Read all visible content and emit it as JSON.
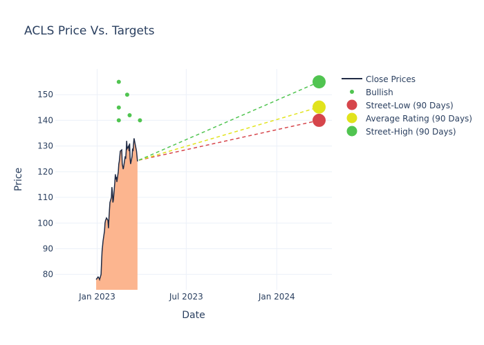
{
  "chart_data": {
    "type": "line",
    "title": "ACLS Price Vs. Targets",
    "xlabel": "Date",
    "ylabel": "Price",
    "x_ticks": [
      {
        "label": "Jan 2023",
        "value": "2023-01-01"
      },
      {
        "label": "Jul 2023",
        "value": "2023-07-01"
      },
      {
        "label": "Jan 2024",
        "value": "2024-01-01"
      }
    ],
    "y_ticks": [
      80,
      90,
      100,
      110,
      120,
      130,
      140,
      150
    ],
    "xlim": [
      "2022-10-08",
      "2024-04-22"
    ],
    "ylim": [
      74,
      160
    ],
    "grid": true,
    "legend_position": "right",
    "close_prices": {
      "name": "Close Prices",
      "color": "#1f2a44",
      "fill_color": "#fcb58f",
      "points": [
        [
          "2022-12-30",
          78
        ],
        [
          "2023-01-03",
          79
        ],
        [
          "2023-01-05",
          78.5
        ],
        [
          "2023-01-06",
          78
        ],
        [
          "2023-01-09",
          80
        ],
        [
          "2023-01-10",
          85
        ],
        [
          "2023-01-11",
          89
        ],
        [
          "2023-01-12",
          91
        ],
        [
          "2023-01-13",
          93
        ],
        [
          "2023-01-16",
          97
        ],
        [
          "2023-01-17",
          100
        ],
        [
          "2023-01-18",
          101
        ],
        [
          "2023-01-20",
          102
        ],
        [
          "2023-01-23",
          101
        ],
        [
          "2023-01-24",
          98
        ],
        [
          "2023-01-25",
          102
        ],
        [
          "2023-01-26",
          105
        ],
        [
          "2023-01-27",
          108
        ],
        [
          "2023-01-30",
          110
        ],
        [
          "2023-01-31",
          114
        ],
        [
          "2023-02-01",
          112
        ],
        [
          "2023-02-02",
          108
        ],
        [
          "2023-02-03",
          109
        ],
        [
          "2023-02-06",
          116
        ],
        [
          "2023-02-07",
          119
        ],
        [
          "2023-02-08",
          117
        ],
        [
          "2023-02-09",
          118
        ],
        [
          "2023-02-10",
          116
        ],
        [
          "2023-02-13",
          120
        ],
        [
          "2023-02-14",
          123
        ],
        [
          "2023-02-15",
          124
        ],
        [
          "2023-02-16",
          126
        ],
        [
          "2023-02-17",
          128
        ],
        [
          "2023-02-20",
          128.5
        ],
        [
          "2023-02-21",
          123
        ],
        [
          "2023-02-22",
          122
        ],
        [
          "2023-02-23",
          121
        ],
        [
          "2023-02-24",
          122
        ],
        [
          "2023-02-27",
          126
        ],
        [
          "2023-02-28",
          125
        ],
        [
          "2023-03-01",
          128
        ],
        [
          "2023-03-02",
          132
        ],
        [
          "2023-03-03",
          129
        ],
        [
          "2023-03-06",
          130
        ],
        [
          "2023-03-07",
          128
        ],
        [
          "2023-03-08",
          131
        ],
        [
          "2023-03-09",
          125
        ],
        [
          "2023-03-10",
          123
        ],
        [
          "2023-03-13",
          126
        ],
        [
          "2023-03-14",
          129
        ],
        [
          "2023-03-15",
          128
        ],
        [
          "2023-03-16",
          131
        ],
        [
          "2023-03-17",
          133
        ],
        [
          "2023-03-20",
          130
        ],
        [
          "2023-03-21",
          129
        ],
        [
          "2023-03-22",
          128
        ],
        [
          "2023-03-24",
          124
        ]
      ]
    },
    "bullish": {
      "name": "Bullish",
      "color": "#50c450",
      "points": [
        [
          "2023-02-14",
          155
        ],
        [
          "2023-02-14",
          145
        ],
        [
          "2023-02-14",
          140
        ],
        [
          "2023-03-03",
          150
        ],
        [
          "2023-03-08",
          142
        ],
        [
          "2023-03-29",
          140
        ]
      ]
    },
    "targets": [
      {
        "name": "Street-Low (90 Days)",
        "value": 140,
        "color": "#d6454b"
      },
      {
        "name": "Average Rating (90 Days)",
        "value": 145.17,
        "color": "#e1e31c"
      },
      {
        "name": "Street-High (90 Days)",
        "value": 155,
        "color": "#50c450"
      }
    ],
    "target_line_start": {
      "date": "2023-03-27",
      "value": 124.5
    },
    "target_date": "2024-03-27"
  }
}
